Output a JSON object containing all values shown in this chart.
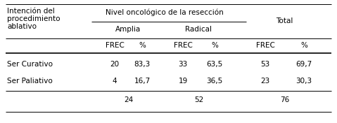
{
  "col0_lines": [
    "Intención del",
    "procedimiento",
    "ablativo"
  ],
  "span_header": "Nivel oncológico de la resección",
  "sub_header1": "Amplia",
  "sub_header2": "Radical",
  "total_header": "Total",
  "col_labels": [
    "FREC",
    "%",
    "FREC",
    "%",
    "FREC",
    "%"
  ],
  "rows": [
    {
      "label": "Ser Curativo",
      "vals": [
        "20",
        "83,3",
        "33",
        "63,5",
        "53",
        "69,7"
      ]
    },
    {
      "label": "Ser Paliativo",
      "vals": [
        "4",
        "16,7",
        "19",
        "36,5",
        "23",
        "30,3"
      ]
    }
  ],
  "total24": "24",
  "total52": "52",
  "total76": "76",
  "font_size": 7.5,
  "bg_color": "#ffffff",
  "text_color": "#000000",
  "line_color": "#000000",
  "figw": 4.79,
  "figh": 1.76,
  "dpi": 100
}
